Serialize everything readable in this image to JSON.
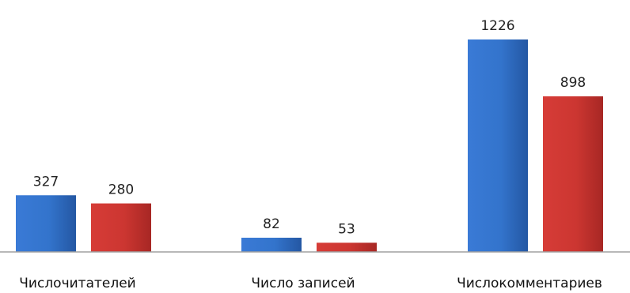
{
  "chart_data": {
    "type": "bar",
    "categories": [
      "Числочитателей",
      "Число записей",
      "Числокомментариев"
    ],
    "series": [
      {
        "values": [
          327,
          82,
          1226
        ],
        "color": "#2f6fc4"
      },
      {
        "values": [
          280,
          53,
          898
        ],
        "color": "#c4332f"
      }
    ],
    "ylim": [
      0,
      1300
    ],
    "grid": false,
    "legend": "none"
  }
}
